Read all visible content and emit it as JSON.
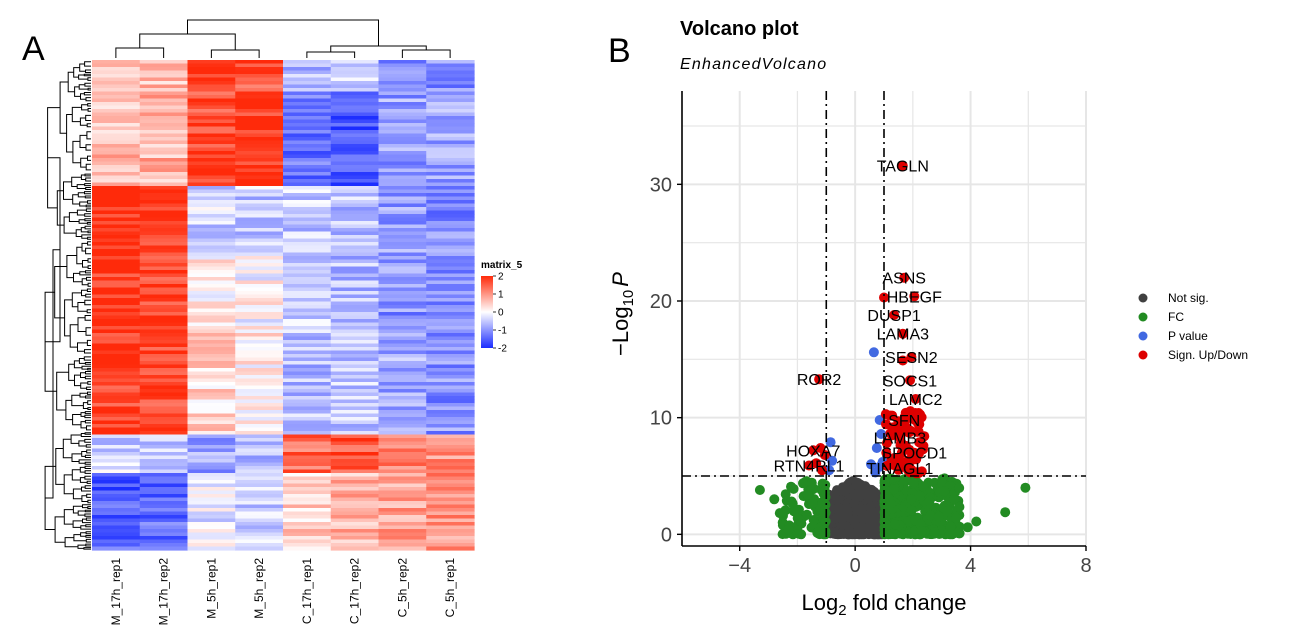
{
  "panels": {
    "a_label": "A",
    "b_label": "B"
  },
  "heatmap": {
    "legend_title": "matrix_5",
    "legend_ticks": [
      "2",
      "1",
      "0",
      "-1",
      "-2"
    ],
    "legend_values": [
      2,
      1,
      0,
      -1,
      -2
    ],
    "columns": [
      "M_17h_rep1",
      "M_17h_rep2",
      "M_5h_rep1",
      "M_5h_rep2",
      "C_17h_rep1",
      "C_17h_rep2",
      "C_5h_rep2",
      "C_5h_rep1"
    ],
    "colors": {
      "high": "#ff2a0a",
      "mid": "#ffffff",
      "low": "#1a2cff"
    }
  },
  "chart_data": {
    "type": "scatter",
    "title": "Volcano plot",
    "subtitle": "EnhancedVolcano",
    "xlabel_prefix": "Log",
    "xlabel_sub": "2",
    "xlabel_suffix": " fold change",
    "ylabel_prefix": "−Log",
    "ylabel_sub": "10",
    "ylabel_italic": "P",
    "xlim": [
      -6,
      8
    ],
    "ylim": [
      -1,
      38
    ],
    "xticks": [
      -4,
      0,
      4,
      8
    ],
    "xtick_labels": [
      "−4",
      "0",
      "4",
      "8"
    ],
    "yticks": [
      0,
      10,
      20,
      30
    ],
    "ytick_labels": [
      "0",
      "10",
      "20",
      "30"
    ],
    "fc_cutoff": 1,
    "p_cutoff": 5,
    "grid": true,
    "legend_position": "right",
    "legend": [
      {
        "label": "Not sig.",
        "color": "#404040"
      },
      {
        "label": "FC",
        "color": "#228b22"
      },
      {
        "label": "P value",
        "color": "#4169e1"
      },
      {
        "label": "Sign. Up/Down",
        "color": "#dd0000"
      }
    ],
    "labels": [
      {
        "text": "TAGLN",
        "x": 1.65,
        "y": 31.6
      },
      {
        "text": "ASNS",
        "x": 1.7,
        "y": 22.0
      },
      {
        "text": "HBEGF",
        "x": 2.05,
        "y": 20.4
      },
      {
        "text": "DUSP1",
        "x": 1.35,
        "y": 18.8
      },
      {
        "text": "LAMA3",
        "x": 1.65,
        "y": 17.2
      },
      {
        "text": "SESN2",
        "x": 1.95,
        "y": 15.2
      },
      {
        "text": "ROR2",
        "x": -1.25,
        "y": 13.3
      },
      {
        "text": "SOCS1",
        "x": 1.9,
        "y": 13.2
      },
      {
        "text": "LAMC2",
        "x": 2.1,
        "y": 11.6
      },
      {
        "text": "SFN",
        "x": 1.7,
        "y": 9.8
      },
      {
        "text": "LAMB3",
        "x": 1.55,
        "y": 8.3
      },
      {
        "text": "HOXA7",
        "x": -1.45,
        "y": 7.2
      },
      {
        "text": "SPOCD1",
        "x": 2.05,
        "y": 7.0
      },
      {
        "text": "RTN4RL1",
        "x": -1.6,
        "y": 5.9
      },
      {
        "text": "TINAGL1",
        "x": 1.55,
        "y": 5.7
      }
    ]
  }
}
